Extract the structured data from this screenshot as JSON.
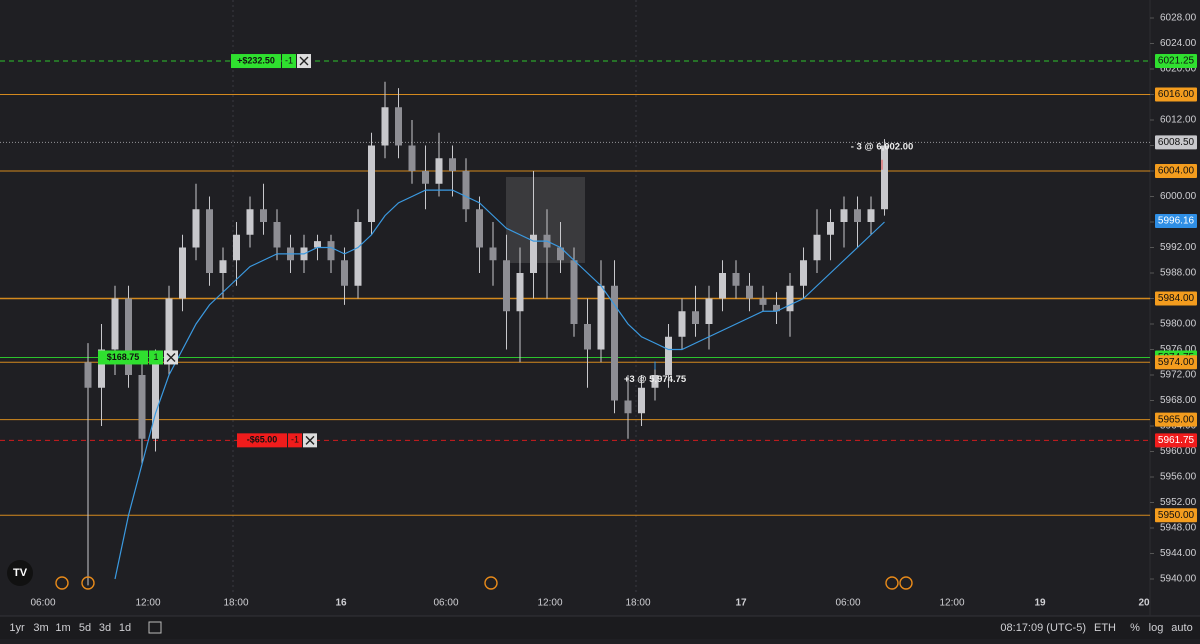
{
  "chart_data": {
    "type": "candlestick",
    "ylim": [
      5938,
      6030
    ],
    "yticks": [
      {
        "value": 5940,
        "label": "5940.00"
      },
      {
        "value": 5944,
        "label": "5944.00"
      },
      {
        "value": 5948,
        "label": "5948.00"
      },
      {
        "value": 5952,
        "label": "5952.00"
      },
      {
        "value": 5956,
        "label": "5956.00"
      },
      {
        "value": 5960,
        "label": "5960.00"
      },
      {
        "value": 5964,
        "label": "5964.00"
      },
      {
        "value": 5968,
        "label": "5968.00"
      },
      {
        "value": 5972,
        "label": "5972.00"
      },
      {
        "value": 5976,
        "label": "5976.00"
      },
      {
        "value": 5980,
        "label": "5980.00"
      },
      {
        "value": 5984,
        "label": "5984.00"
      },
      {
        "value": 5988,
        "label": "5988.00"
      },
      {
        "value": 5992,
        "label": "5992.00"
      },
      {
        "value": 5996,
        "label": "5996.00"
      },
      {
        "value": 6000,
        "label": "6000.00"
      },
      {
        "value": 6004,
        "label": "6004.00"
      },
      {
        "value": 6008,
        "label": "6008.00"
      },
      {
        "value": 6012,
        "label": "6012.00"
      },
      {
        "value": 6016,
        "label": "6016.00"
      },
      {
        "value": 6020,
        "label": "6020.00"
      },
      {
        "value": 6024,
        "label": "6024.00"
      },
      {
        "value": 6028,
        "label": "6028.00"
      }
    ],
    "xticks": [
      "06:00",
      "12:00",
      "18:00",
      "16",
      "06:00",
      "12:00",
      "18:00",
      "17",
      "06:00",
      "12:00",
      "19",
      "20"
    ],
    "candle_color": "#c8c8cc",
    "candles": [
      {
        "o": 5974,
        "h": 5977,
        "l": 5939,
        "c": 5970
      },
      {
        "o": 5970,
        "h": 5980,
        "l": 5964,
        "c": 5976
      },
      {
        "o": 5976,
        "h": 5986,
        "l": 5972,
        "c": 5984
      },
      {
        "o": 5984,
        "h": 5986,
        "l": 5970,
        "c": 5972
      },
      {
        "o": 5972,
        "h": 5974,
        "l": 5958,
        "c": 5962
      },
      {
        "o": 5962,
        "h": 5976,
        "l": 5960,
        "c": 5974
      },
      {
        "o": 5974,
        "h": 5986,
        "l": 5972,
        "c": 5984
      },
      {
        "o": 5984,
        "h": 5994,
        "l": 5982,
        "c": 5992
      },
      {
        "o": 5992,
        "h": 6002,
        "l": 5990,
        "c": 5998
      },
      {
        "o": 5998,
        "h": 6000,
        "l": 5986,
        "c": 5988
      },
      {
        "o": 5988,
        "h": 5992,
        "l": 5984,
        "c": 5990
      },
      {
        "o": 5990,
        "h": 5996,
        "l": 5986,
        "c": 5994
      },
      {
        "o": 5994,
        "h": 6000,
        "l": 5992,
        "c": 5998
      },
      {
        "o": 5998,
        "h": 6002,
        "l": 5994,
        "c": 5996
      },
      {
        "o": 5996,
        "h": 5998,
        "l": 5990,
        "c": 5992
      },
      {
        "o": 5992,
        "h": 5994,
        "l": 5988,
        "c": 5990
      },
      {
        "o": 5990,
        "h": 5994,
        "l": 5988,
        "c": 5992
      },
      {
        "o": 5992,
        "h": 5994,
        "l": 5990,
        "c": 5993
      },
      {
        "o": 5993,
        "h": 5994,
        "l": 5988,
        "c": 5990
      },
      {
        "o": 5990,
        "h": 5992,
        "l": 5983,
        "c": 5986
      },
      {
        "o": 5986,
        "h": 5998,
        "l": 5984,
        "c": 5996
      },
      {
        "o": 5996,
        "h": 6010,
        "l": 5994,
        "c": 6008
      },
      {
        "o": 6008,
        "h": 6018,
        "l": 6006,
        "c": 6014
      },
      {
        "o": 6014,
        "h": 6017,
        "l": 6006,
        "c": 6008
      },
      {
        "o": 6008,
        "h": 6012,
        "l": 6002,
        "c": 6004
      },
      {
        "o": 6004,
        "h": 6008,
        "l": 5998,
        "c": 6002
      },
      {
        "o": 6002,
        "h": 6010,
        "l": 6000,
        "c": 6006
      },
      {
        "o": 6006,
        "h": 6008,
        "l": 6000,
        "c": 6004
      },
      {
        "o": 6004,
        "h": 6006,
        "l": 5996,
        "c": 5998
      },
      {
        "o": 5998,
        "h": 6000,
        "l": 5988,
        "c": 5992
      },
      {
        "o": 5992,
        "h": 5996,
        "l": 5986,
        "c": 5990
      },
      {
        "o": 5990,
        "h": 5994,
        "l": 5976,
        "c": 5982
      },
      {
        "o": 5982,
        "h": 5992,
        "l": 5974,
        "c": 5988
      },
      {
        "o": 5988,
        "h": 6004,
        "l": 5984,
        "c": 5994
      },
      {
        "o": 5994,
        "h": 5998,
        "l": 5984,
        "c": 5992
      },
      {
        "o": 5992,
        "h": 5996,
        "l": 5988,
        "c": 5990
      },
      {
        "o": 5990,
        "h": 5992,
        "l": 5978,
        "c": 5980
      },
      {
        "o": 5980,
        "h": 5984,
        "l": 5970,
        "c": 5976
      },
      {
        "o": 5976,
        "h": 5990,
        "l": 5974,
        "c": 5986
      },
      {
        "o": 5986,
        "h": 5990,
        "l": 5966,
        "c": 5968
      },
      {
        "o": 5968,
        "h": 5972,
        "l": 5962,
        "c": 5966
      },
      {
        "o": 5966,
        "h": 5972,
        "l": 5964,
        "c": 5970
      },
      {
        "o": 5970,
        "h": 5974,
        "l": 5968,
        "c": 5972
      },
      {
        "o": 5972,
        "h": 5980,
        "l": 5970,
        "c": 5978
      },
      {
        "o": 5978,
        "h": 5984,
        "l": 5976,
        "c": 5982
      },
      {
        "o": 5982,
        "h": 5986,
        "l": 5978,
        "c": 5980
      },
      {
        "o": 5980,
        "h": 5986,
        "l": 5976,
        "c": 5984
      },
      {
        "o": 5984,
        "h": 5990,
        "l": 5982,
        "c": 5988
      },
      {
        "o": 5988,
        "h": 5990,
        "l": 5984,
        "c": 5986
      },
      {
        "o": 5986,
        "h": 5988,
        "l": 5982,
        "c": 5984
      },
      {
        "o": 5984,
        "h": 5986,
        "l": 5982,
        "c": 5983
      },
      {
        "o": 5983,
        "h": 5985,
        "l": 5980,
        "c": 5982
      },
      {
        "o": 5982,
        "h": 5988,
        "l": 5978,
        "c": 5986
      },
      {
        "o": 5986,
        "h": 5992,
        "l": 5984,
        "c": 5990
      },
      {
        "o": 5990,
        "h": 5998,
        "l": 5988,
        "c": 5994
      },
      {
        "o": 5994,
        "h": 5998,
        "l": 5990,
        "c": 5996
      },
      {
        "o": 5996,
        "h": 6000,
        "l": 5992,
        "c": 5998
      },
      {
        "o": 5998,
        "h": 6000,
        "l": 5992,
        "c": 5996
      },
      {
        "o": 5996,
        "h": 6000,
        "l": 5994,
        "c": 5998
      },
      {
        "o": 5998,
        "h": 6009,
        "l": 5997,
        "c": 6008
      }
    ],
    "ma": {
      "color": "#3b9ae1",
      "values": [
        null,
        null,
        5940,
        5950,
        5958,
        5966,
        5972,
        5976,
        5980,
        5983,
        5985,
        5987,
        5989,
        5990,
        5991,
        5991,
        5991,
        5992,
        5992,
        5991,
        5992,
        5994,
        5997,
        5999,
        6000,
        6001,
        6001,
        6001,
        6000,
        5999,
        5997,
        5995,
        5994,
        5993,
        5993,
        5992,
        5990,
        5988,
        5986,
        5983,
        5980,
        5978,
        5977,
        5976,
        5976,
        5977,
        5978,
        5979,
        5980,
        5981,
        5982,
        5982,
        5983,
        5984,
        5986,
        5988,
        5990,
        5992,
        5994,
        5996
      ]
    },
    "levels": [
      {
        "value": 6021.25,
        "color": "#2fe02f",
        "style": "dashed"
      },
      {
        "value": 6016,
        "label": "6016.00",
        "color": "#f39c1e",
        "style": "solid"
      },
      {
        "value": 6008.5,
        "label": "6008.50",
        "color": "#c8c8cc",
        "style": "dotted"
      },
      {
        "value": 6004,
        "label": "6004.00",
        "color": "#f39c1e",
        "style": "solid"
      },
      {
        "value": 5996.16,
        "color": "#2f8fe6",
        "style": "none"
      },
      {
        "value": 5984,
        "label": "5984.00",
        "color": "#f39c1e",
        "style": "thick"
      },
      {
        "value": 5974.75,
        "color": "#2fe02f",
        "style": "solid"
      },
      {
        "value": 5974,
        "label": "5974.00",
        "color": "#f39c1e",
        "style": "solid"
      },
      {
        "value": 5965,
        "label": "5965.00",
        "color": "#f39c1e",
        "style": "solid"
      },
      {
        "value": 5961.75,
        "color": "#f01c1c",
        "style": "dashed"
      },
      {
        "value": 5950,
        "label": "5950.00",
        "color": "#f39c1e",
        "style": "solid"
      }
    ],
    "orders": [
      {
        "price": 6021.25,
        "pnl": "+$232.50",
        "qty": "-1",
        "color": "#2fe02f"
      },
      {
        "price": 5974.75,
        "pnl": "$168.75",
        "qty": "1",
        "color": "#2fe02f"
      },
      {
        "price": 5961.75,
        "pnl": "-$65.00",
        "qty": "-1",
        "color": "#f01c1c"
      }
    ],
    "annotations": [
      {
        "text": "- 3 @ 6,002.00",
        "price": 6002
      },
      {
        "text": "+3 @ 5,974.75",
        "price": 5974.75
      }
    ]
  },
  "toolbar": {
    "ranges": [
      "1yr",
      "3m",
      "1m",
      "5d",
      "3d",
      "1d"
    ],
    "clock": "08:17:09 (UTC-5)",
    "session": "ETH",
    "options": [
      "%",
      "log",
      "auto"
    ]
  }
}
